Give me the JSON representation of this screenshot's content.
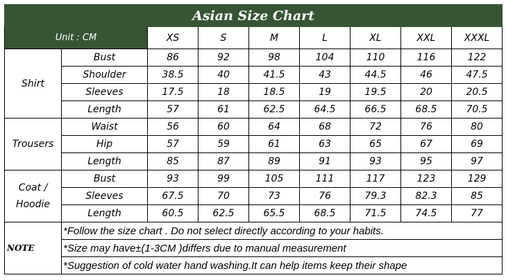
{
  "title": "Asian Size Chart",
  "unit_label": "Unit : CM",
  "sizes": [
    "XS",
    "S",
    "M",
    "L",
    "XL",
    "XXL",
    "XXXL"
  ],
  "groups": [
    {
      "name_lines": [
        "Shirt"
      ],
      "rows": [
        {
          "label": "Bust",
          "values": [
            "86",
            "92",
            "98",
            "104",
            "110",
            "116",
            "122"
          ]
        },
        {
          "label": "Shoulder",
          "values": [
            "38.5",
            "40",
            "41.5",
            "43",
            "44.5",
            "46",
            "47.5"
          ]
        },
        {
          "label": "Sleeves",
          "values": [
            "17.5",
            "18",
            "18.5",
            "19",
            "19.5",
            "20",
            "20.5"
          ]
        },
        {
          "label": "Length",
          "values": [
            "57",
            "61",
            "62.5",
            "64.5",
            "66.5",
            "68.5",
            "70.5"
          ]
        }
      ]
    },
    {
      "name_lines": [
        "Trousers"
      ],
      "rows": [
        {
          "label": "Waist",
          "values": [
            "56",
            "60",
            "64",
            "68",
            "72",
            "76",
            "80"
          ]
        },
        {
          "label": "Hip",
          "values": [
            "57",
            "59",
            "61",
            "63",
            "65",
            "67",
            "69"
          ]
        },
        {
          "label": "Length",
          "values": [
            "85",
            "87",
            "89",
            "91",
            "93",
            "95",
            "97"
          ]
        }
      ]
    },
    {
      "name_lines": [
        "Coat /",
        "Hoodie"
      ],
      "rows": [
        {
          "label": "Bust",
          "values": [
            "93",
            "99",
            "105",
            "111",
            "117",
            "123",
            "129"
          ]
        },
        {
          "label": "Sleeves",
          "values": [
            "67.5",
            "70",
            "73",
            "76",
            "79.3",
            "82.3",
            "85"
          ]
        },
        {
          "label": "Length",
          "values": [
            "60.5",
            "62.5",
            "65.5",
            "68.5",
            "71.5",
            "74.5",
            "77"
          ]
        }
      ]
    }
  ],
  "note": {
    "label": "NOTE",
    "lines": [
      "*Follow the size chart . Do not select directly according to your habits.",
      "*Size may have±(1-3CM )differs due to manual measurement",
      "*Suggestion of cold water hand washing.It can help items keep their shape"
    ]
  },
  "colors": {
    "header_green": "#375534",
    "header_text": "#ffffff",
    "border": "#000000"
  }
}
